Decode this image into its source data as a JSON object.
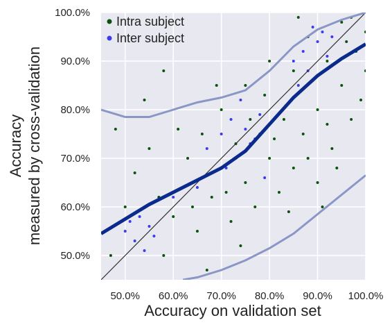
{
  "chart_data": {
    "type": "scatter",
    "xlabel": "Accuracy on validation set",
    "ylabel": [
      "Accuracy",
      "measured by cross-validation"
    ],
    "xlim": [
      45,
      100
    ],
    "ylim": [
      45,
      100
    ],
    "xticks": [
      {
        "value": 50,
        "label": "50.0%"
      },
      {
        "value": 60,
        "label": "60.0%"
      },
      {
        "value": 70,
        "label": "70.0%"
      },
      {
        "value": 80,
        "label": "80.0%"
      },
      {
        "value": 90,
        "label": "90.0%"
      },
      {
        "value": 100,
        "label": "100.0%"
      }
    ],
    "yticks": [
      {
        "value": 50,
        "label": "50.0%"
      },
      {
        "value": 60,
        "label": "60.0%"
      },
      {
        "value": 70,
        "label": "70.0%"
      },
      {
        "value": 80,
        "label": "80.0%"
      },
      {
        "value": 90,
        "label": "90.0%"
      },
      {
        "value": 100,
        "label": "100.0%"
      }
    ],
    "grid": true,
    "legend": "upper left",
    "series": [
      {
        "name": "Intra subject",
        "color": "#0b520b",
        "x": [
          50,
          52,
          48,
          55,
          58,
          60,
          62,
          63,
          65,
          66,
          68,
          70,
          70,
          72,
          73,
          75,
          75,
          77,
          78,
          80,
          80,
          82,
          83,
          85,
          85,
          87,
          88,
          90,
          90,
          92,
          93,
          95,
          95,
          97,
          98,
          100,
          100,
          54,
          58,
          47,
          57,
          67,
          69,
          74,
          79,
          84,
          86,
          89,
          91,
          94,
          96,
          99,
          61,
          64,
          71,
          76,
          81,
          88,
          92,
          97
        ],
        "y": [
          60,
          67,
          76,
          72,
          50,
          58,
          64,
          70,
          55,
          75,
          62,
          68,
          80,
          57,
          73,
          65,
          85,
          60,
          75,
          70,
          90,
          63,
          78,
          68,
          88,
          75,
          95,
          80,
          65,
          90,
          72,
          85,
          98,
          78,
          92,
          96,
          88,
          82,
          88,
          50,
          62,
          47,
          85,
          52,
          83,
          59,
          99,
          86,
          60,
          68,
          94,
          82,
          76,
          60,
          63,
          78,
          74,
          70,
          77,
          99
        ]
      },
      {
        "name": "Inter subject",
        "color": "#3b3bf0",
        "x": [
          50,
          52,
          54,
          55,
          53,
          56,
          51,
          67,
          70,
          72,
          73,
          75,
          78,
          74,
          76,
          71,
          77,
          79,
          85,
          87,
          88,
          90,
          89,
          92,
          86,
          91,
          93,
          65,
          60,
          68
        ],
        "y": [
          55,
          53,
          51,
          56,
          58,
          54,
          57,
          72,
          75,
          78,
          70,
          76,
          79,
          82,
          73,
          68,
          74,
          66,
          90,
          92,
          88,
          94,
          97,
          91,
          85,
          96,
          95,
          64,
          62,
          67
        ]
      }
    ],
    "lines": [
      {
        "color": "#333333",
        "linewidth": 1.2,
        "x": [
          45,
          100
        ],
        "y": [
          45,
          100
        ]
      },
      {
        "color": "#8a96c6",
        "linewidth": 3,
        "x": [
          45,
          50,
          55,
          60,
          65,
          70,
          75,
          80,
          85,
          90,
          95,
          100
        ],
        "y": [
          80,
          78.5,
          78.5,
          80,
          81.5,
          82.5,
          84,
          88,
          93,
          96.5,
          98.5,
          100
        ]
      },
      {
        "color": "#8a96c6",
        "linewidth": 3,
        "x": [
          62,
          65,
          70,
          75,
          80,
          85,
          90,
          95,
          100
        ],
        "y": [
          45,
          45.5,
          47,
          49,
          51.5,
          54.5,
          58.5,
          62.5,
          66.5
        ]
      },
      {
        "color": "#0a2a8c",
        "linewidth": 5,
        "x": [
          45,
          50,
          55,
          60,
          65,
          70,
          75,
          80,
          85,
          90,
          95,
          100
        ],
        "y": [
          54.5,
          57.5,
          60.5,
          63,
          65.5,
          68,
          71.5,
          77,
          82.5,
          87,
          90.5,
          93.5
        ]
      }
    ]
  }
}
